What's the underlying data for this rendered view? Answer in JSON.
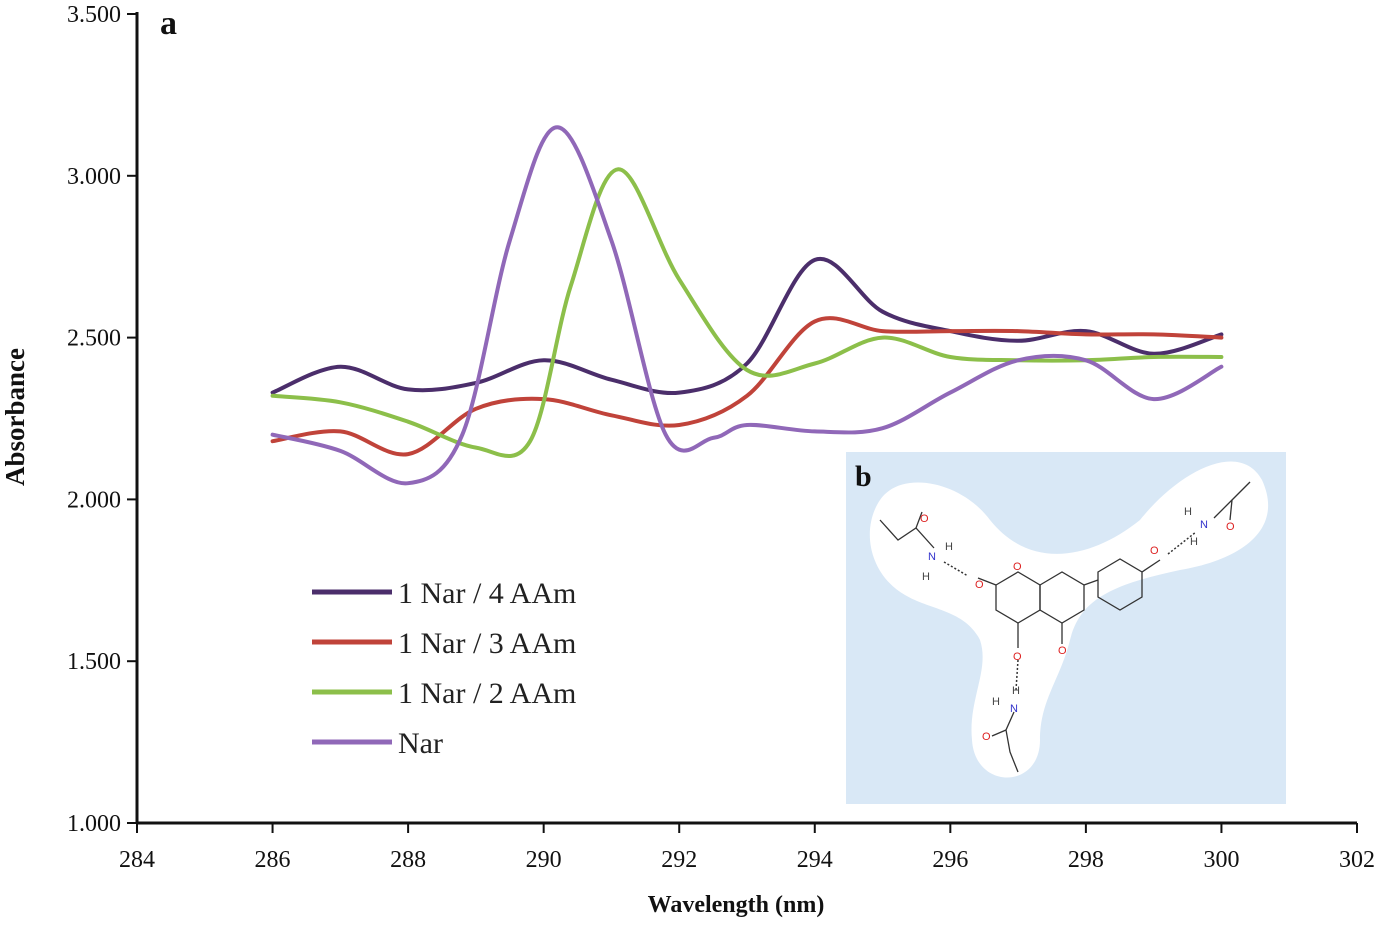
{
  "panel_a_label": "a",
  "chart_data": {
    "type": "line",
    "xlabel": "Wavelength (nm)",
    "ylabel": "Absorbance",
    "xlim": [
      284,
      302
    ],
    "ylim": [
      1.0,
      3.5
    ],
    "x_ticks": [
      "284",
      "286",
      "288",
      "290",
      "292",
      "294",
      "296",
      "298",
      "300",
      "302"
    ],
    "y_ticks": [
      "1.000",
      "1.500",
      "2.000",
      "2.500",
      "3.000",
      "3.500"
    ],
    "legend_position": "lower-left",
    "grid": false,
    "series": [
      {
        "name": "1 Nar / 4 AAm",
        "color": "#4b2e6b",
        "x": [
          286,
          287,
          288,
          289,
          290,
          291,
          292,
          293,
          294,
          295,
          296,
          297,
          298,
          299,
          300
        ],
        "y": [
          2.33,
          2.41,
          2.34,
          2.36,
          2.43,
          2.37,
          2.33,
          2.42,
          2.74,
          2.58,
          2.52,
          2.49,
          2.52,
          2.45,
          2.51
        ]
      },
      {
        "name": "1 Nar / 3 AAm",
        "color": "#c0433a",
        "x": [
          286,
          287,
          288,
          289,
          290,
          291,
          292,
          293,
          294,
          295,
          296,
          297,
          298,
          299,
          300
        ],
        "y": [
          2.18,
          2.21,
          2.14,
          2.28,
          2.31,
          2.26,
          2.23,
          2.32,
          2.55,
          2.52,
          2.52,
          2.52,
          2.51,
          2.51,
          2.5
        ]
      },
      {
        "name": "1 Nar / 2 AAm",
        "color": "#8cbf4a",
        "x": [
          286,
          287,
          288,
          289,
          289.8,
          290.4,
          291.1,
          292,
          293,
          294,
          295,
          296,
          297,
          298,
          299,
          300
        ],
        "y": [
          2.32,
          2.3,
          2.24,
          2.16,
          2.18,
          2.66,
          3.02,
          2.68,
          2.4,
          2.42,
          2.5,
          2.44,
          2.43,
          2.43,
          2.44,
          2.44
        ]
      },
      {
        "name": "Nar",
        "color": "#9068b8",
        "x": [
          286,
          287,
          288,
          288.8,
          289.5,
          290.2,
          291,
          291.8,
          292.5,
          293,
          294,
          295,
          296,
          297,
          298,
          299,
          300
        ],
        "y": [
          2.2,
          2.15,
          2.05,
          2.2,
          2.8,
          3.15,
          2.8,
          2.2,
          2.19,
          2.23,
          2.21,
          2.22,
          2.33,
          2.43,
          2.43,
          2.31,
          2.41
        ]
      }
    ]
  },
  "inset": {
    "panel_label": "b",
    "background": "#d9e8f6",
    "atoms": {
      "O": "O",
      "N": "N",
      "H": "H"
    }
  }
}
